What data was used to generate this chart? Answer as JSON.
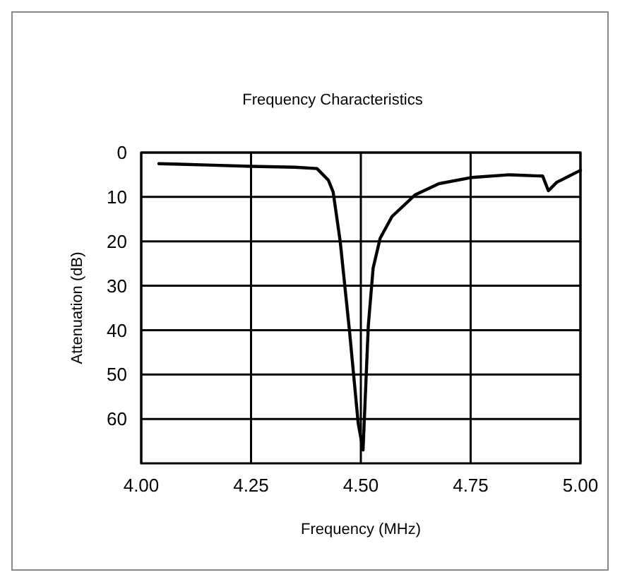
{
  "chart_data": {
    "type": "line",
    "title": "Frequency Characteristics",
    "xlabel": "Frequency (MHz)",
    "ylabel": "Attenuation (dB)",
    "xlim": [
      4,
      5
    ],
    "xticks": [
      {
        "value": 4,
        "label": "4.00"
      },
      {
        "value": 4.25,
        "label": "4.25"
      },
      {
        "value": 4.5,
        "label": "4.50"
      },
      {
        "value": 4.75,
        "label": "4.75"
      },
      {
        "value": 5,
        "label": "5.00"
      }
    ],
    "ylim": [
      70,
      0
    ],
    "yticks": [
      0,
      10,
      20,
      30,
      40,
      50,
      60
    ],
    "grid": true,
    "marker": "none",
    "line_style": "solid",
    "series": [
      {
        "color": "#000000",
        "x": [
          4.04,
          4.15,
          4.25,
          4.35,
          4.4,
          4.426,
          4.437,
          4.453,
          4.474,
          4.494,
          4.505,
          4.517,
          4.528,
          4.544,
          4.571,
          4.624,
          4.678,
          4.753,
          4.839,
          4.914,
          4.927,
          4.946,
          5.0
        ],
        "values": [
          2.5,
          2.8,
          3.1,
          3.3,
          3.6,
          6.2,
          8.9,
          20,
          40,
          61,
          67,
          39,
          26,
          19.3,
          14.4,
          9.5,
          7,
          5.6,
          5,
          5.3,
          8.6,
          6.7,
          4
        ]
      }
    ]
  }
}
